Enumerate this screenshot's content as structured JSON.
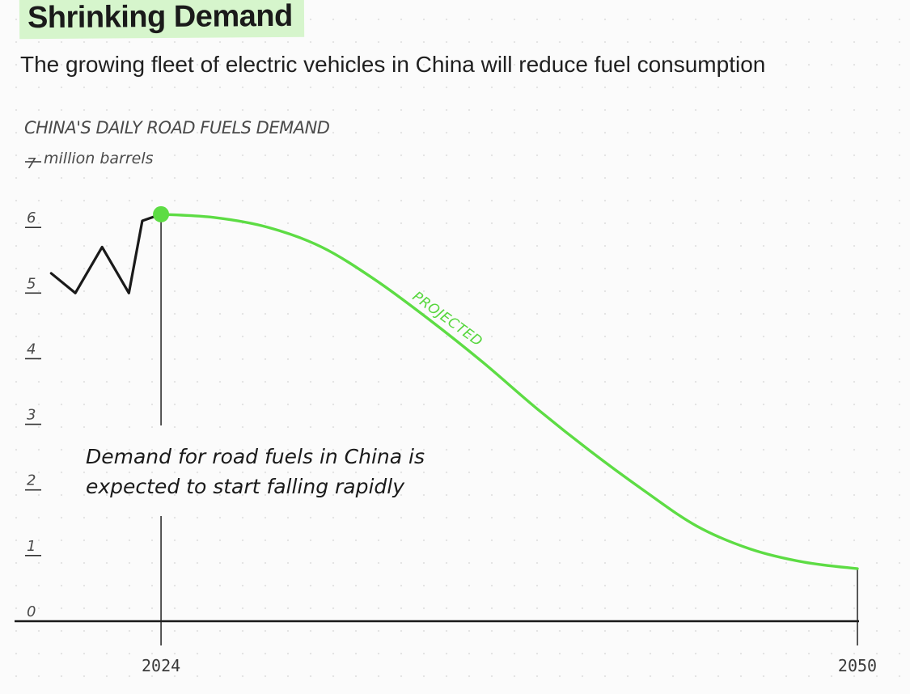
{
  "header": {
    "title": "Shrinking Demand",
    "subtitle": "The growing fleet of electric vehicles in China will reduce fuel consumption"
  },
  "colors": {
    "history_line": "#1a1a1a",
    "projection_line": "#5ddc44",
    "highlight_bg": "#d6f5cc"
  },
  "chart_data": {
    "type": "line",
    "title": "CHINA'S DAILY ROAD FUELS DEMAND",
    "unit_label": "million barrels",
    "ylim": [
      0,
      7
    ],
    "y_ticks": [
      "0",
      "1",
      "2",
      "3",
      "4",
      "5",
      "6",
      "7"
    ],
    "x_ticks": [
      "2024",
      "2050"
    ],
    "xlim": [
      2019.8,
      2050
    ],
    "annotation": [
      "Demand for road fuels in China is",
      "expected to start falling rapidly"
    ],
    "projection_label": "PROJECTED",
    "series": [
      {
        "kind": "historical",
        "x": [
          2019.9,
          2020.8,
          2021.8,
          2022.8,
          2023.3,
          2024
        ],
        "y": [
          5.3,
          5.0,
          5.7,
          5.0,
          6.1,
          6.2
        ]
      },
      {
        "kind": "projected",
        "x": [
          2024,
          2026,
          2028,
          2030,
          2032,
          2034,
          2036,
          2038,
          2040,
          2042,
          2044,
          2046,
          2048,
          2050
        ],
        "y": [
          6.2,
          6.15,
          6.0,
          5.7,
          5.2,
          4.6,
          3.95,
          3.25,
          2.6,
          2.0,
          1.45,
          1.1,
          0.9,
          0.8
        ]
      }
    ]
  }
}
